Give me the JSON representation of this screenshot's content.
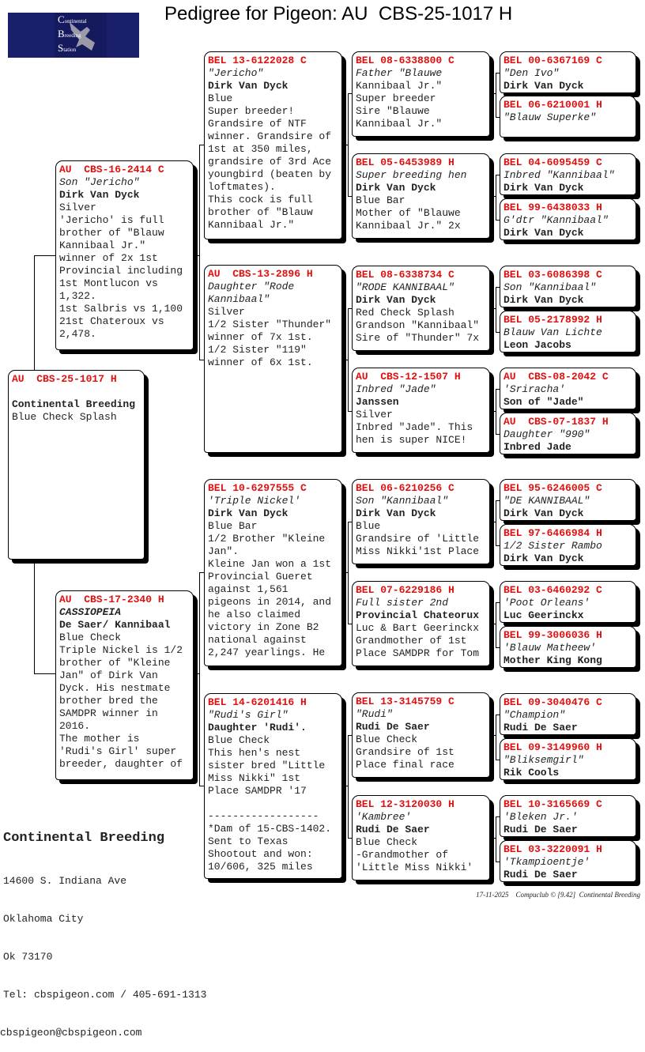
{
  "title": "Pedigree for Pigeon: AU  CBS-25-1017 H",
  "logo": {
    "lines": [
      "Continental",
      "Breeding",
      "Station"
    ],
    "color": "#1a1f6b"
  },
  "colors": {
    "ring": "#e01010",
    "text": "#222222",
    "shadow": "#000000"
  },
  "root": {
    "ring": "AU  CBS-25-1017 H",
    "lines": [
      {
        "t": "",
        "s": ""
      },
      {
        "t": "Continental Breeding",
        "s": "b"
      },
      {
        "t": "Blue Check Splash",
        "s": ""
      }
    ]
  },
  "gen2": [
    {
      "ring": "AU  CBS-16-2414 C",
      "lines": [
        {
          "t": "Son \"Jericho\"",
          "s": "i"
        },
        {
          "t": "Dirk Van Dyck",
          "s": "b"
        },
        {
          "t": "Silver",
          "s": ""
        },
        {
          "t": "'Jericho' is full",
          "s": ""
        },
        {
          "t": "brother of \"Blauw",
          "s": ""
        },
        {
          "t": "Kannibaal Jr.\"",
          "s": ""
        },
        {
          "t": "winner of 2x 1st",
          "s": ""
        },
        {
          "t": "Provincial including",
          "s": ""
        },
        {
          "t": "1st Montlucon vs",
          "s": ""
        },
        {
          "t": "1,322.",
          "s": ""
        },
        {
          "t": "1st Salbris vs 1,100",
          "s": ""
        },
        {
          "t": "21st Chateroux vs",
          "s": ""
        },
        {
          "t": "2,478.",
          "s": ""
        }
      ]
    },
    {
      "ring": "AU  CBS-17-2340 H",
      "lines": [
        {
          "t": "CASSIOPEIA",
          "s": "bi"
        },
        {
          "t": "De Saer/ Kannibaal",
          "s": "b"
        },
        {
          "t": "Blue Check",
          "s": ""
        },
        {
          "t": "Triple Nickel is 1/2",
          "s": ""
        },
        {
          "t": "brother of \"Kleine",
          "s": ""
        },
        {
          "t": "Jan\" of Dirk Van",
          "s": ""
        },
        {
          "t": "Dyck. His nestmate",
          "s": ""
        },
        {
          "t": "brother bred the",
          "s": ""
        },
        {
          "t": "SAMDPR winner in",
          "s": ""
        },
        {
          "t": "2016.",
          "s": ""
        },
        {
          "t": "The mother is",
          "s": ""
        },
        {
          "t": "'Rudi's Girl' super",
          "s": ""
        },
        {
          "t": "breeder, daughter of",
          "s": ""
        }
      ]
    }
  ],
  "gen3": [
    {
      "ring": "BEL 13-6122028 C",
      "lines": [
        {
          "t": "\"Jericho\"",
          "s": "i"
        },
        {
          "t": "Dirk Van Dyck",
          "s": "b"
        },
        {
          "t": "Blue",
          "s": ""
        },
        {
          "t": "Super breeder!",
          "s": ""
        },
        {
          "t": "Grandsire of NTF",
          "s": ""
        },
        {
          "t": "winner. Grandsire of",
          "s": ""
        },
        {
          "t": "1st at 350 miles,",
          "s": ""
        },
        {
          "t": "grandsire of 3rd Ace",
          "s": ""
        },
        {
          "t": "youngbird (beaten by",
          "s": ""
        },
        {
          "t": "loftmates).",
          "s": ""
        },
        {
          "t": "This cock is full",
          "s": ""
        },
        {
          "t": "brother of \"Blauw",
          "s": ""
        },
        {
          "t": "Kannibaal Jr.\"",
          "s": ""
        }
      ]
    },
    {
      "ring": "AU  CBS-13-2896 H",
      "lines": [
        {
          "t": "Daughter \"Rode",
          "s": "i"
        },
        {
          "t": "Kannibaal\"",
          "s": "i"
        },
        {
          "t": "Silver",
          "s": ""
        },
        {
          "t": "1/2 Sister \"Thunder\"",
          "s": ""
        },
        {
          "t": "winner of 7x 1st.",
          "s": ""
        },
        {
          "t": "1/2 Sister \"119\"",
          "s": ""
        },
        {
          "t": "winner of 6x 1st.",
          "s": ""
        }
      ]
    },
    {
      "ring": "BEL 10-6297555 C",
      "lines": [
        {
          "t": "'Triple Nickel'",
          "s": "i"
        },
        {
          "t": "Dirk Van Dyck",
          "s": "b"
        },
        {
          "t": "Blue Bar",
          "s": ""
        },
        {
          "t": "1/2 Brother \"Kleine",
          "s": ""
        },
        {
          "t": "Jan\".",
          "s": ""
        },
        {
          "t": "Kleine Jan won a 1st",
          "s": ""
        },
        {
          "t": "Provincial Gueret",
          "s": ""
        },
        {
          "t": "against 1,561",
          "s": ""
        },
        {
          "t": "pigeons in 2014, and",
          "s": ""
        },
        {
          "t": "he also claimed",
          "s": ""
        },
        {
          "t": "victory in Zone B2",
          "s": ""
        },
        {
          "t": "national against",
          "s": ""
        },
        {
          "t": "2,247 yearlings. He",
          "s": ""
        }
      ]
    },
    {
      "ring": "BEL 14-6201416 H",
      "lines": [
        {
          "t": "\"Rudi's Girl\"",
          "s": "i"
        },
        {
          "t": "Daughter 'Rudi'.",
          "s": "b"
        },
        {
          "t": "Blue Check",
          "s": ""
        },
        {
          "t": "This hen's nest",
          "s": ""
        },
        {
          "t": "sister bred \"Little",
          "s": ""
        },
        {
          "t": "Miss Nikki\" 1st",
          "s": ""
        },
        {
          "t": "Place SAMDPR '17",
          "s": ""
        },
        {
          "t": "",
          "s": ""
        },
        {
          "t": "------------------",
          "s": ""
        },
        {
          "t": "*Dam of 15-CBS-1402.",
          "s": ""
        },
        {
          "t": "Sent to Texas",
          "s": ""
        },
        {
          "t": "Shootout and won:",
          "s": ""
        },
        {
          "t": "10/606, 325 miles",
          "s": ""
        }
      ]
    }
  ],
  "gen4": [
    {
      "ring": "BEL 08-6338800 C",
      "lines": [
        {
          "t": "Father \"Blauwe",
          "s": "i"
        },
        {
          "t": "Kannibaal Jr.\"",
          "s": ""
        },
        {
          "t": "Super breeder",
          "s": ""
        },
        {
          "t": "Sire \"Blauwe",
          "s": ""
        },
        {
          "t": "Kannibaal Jr.\"",
          "s": ""
        }
      ]
    },
    {
      "ring": "BEL 05-6453989 H",
      "lines": [
        {
          "t": "Super breeding hen",
          "s": "i"
        },
        {
          "t": "Dirk Van Dyck",
          "s": "b"
        },
        {
          "t": "Blue Bar",
          "s": ""
        },
        {
          "t": "Mother of \"Blauwe",
          "s": ""
        },
        {
          "t": "Kannibaal Jr.\" 2x",
          "s": ""
        }
      ]
    },
    {
      "ring": "BEL 08-6338734 C",
      "lines": [
        {
          "t": "\"RODE KANNIBAAL\"",
          "s": "i"
        },
        {
          "t": "Dirk Van Dyck",
          "s": "b"
        },
        {
          "t": "Red Check Splash",
          "s": ""
        },
        {
          "t": "Grandson \"Kannibaal\"",
          "s": ""
        },
        {
          "t": "Sire of \"Thunder\" 7x",
          "s": ""
        }
      ]
    },
    {
      "ring": "AU  CBS-12-1507 H",
      "lines": [
        {
          "t": "Inbred \"Jade\"",
          "s": "i"
        },
        {
          "t": "Janssen",
          "s": "b"
        },
        {
          "t": "Silver",
          "s": ""
        },
        {
          "t": "Inbred \"Jade\". This",
          "s": ""
        },
        {
          "t": "hen is super NICE!",
          "s": ""
        }
      ]
    },
    {
      "ring": "BEL 06-6210256 C",
      "lines": [
        {
          "t": "Son \"Kannibaal\"",
          "s": "i"
        },
        {
          "t": "Dirk Van Dyck",
          "s": "b"
        },
        {
          "t": "Blue",
          "s": ""
        },
        {
          "t": "Grandsire of 'Little",
          "s": ""
        },
        {
          "t": "Miss Nikki'1st Place",
          "s": ""
        }
      ]
    },
    {
      "ring": "BEL 07-6229186 H",
      "lines": [
        {
          "t": "Full sister 2nd",
          "s": "i"
        },
        {
          "t": "Provincial Chateorux",
          "s": "b"
        },
        {
          "t": "Luc & Bart Geerinckx",
          "s": ""
        },
        {
          "t": "Grandmother of 1st",
          "s": ""
        },
        {
          "t": "Place SAMDPR for Tom",
          "s": ""
        }
      ]
    },
    {
      "ring": "BEL 13-3145759 C",
      "lines": [
        {
          "t": "\"Rudi\"",
          "s": "i"
        },
        {
          "t": "Rudi De Saer",
          "s": "b"
        },
        {
          "t": "Blue Check",
          "s": ""
        },
        {
          "t": "Grandsire of 1st",
          "s": ""
        },
        {
          "t": "Place final race",
          "s": ""
        }
      ]
    },
    {
      "ring": "BEL 12-3120030 H",
      "lines": [
        {
          "t": "'Kambree'",
          "s": "i"
        },
        {
          "t": "Rudi De Saer",
          "s": "b"
        },
        {
          "t": "Blue Check",
          "s": ""
        },
        {
          "t": "-Grandmother of",
          "s": ""
        },
        {
          "t": "'Little Miss Nikki'",
          "s": ""
        }
      ]
    }
  ],
  "gen5": [
    {
      "ring": "BEL 00-6367169 C",
      "lines": [
        {
          "t": "\"Den Ivo\"",
          "s": "i"
        },
        {
          "t": "Dirk Van Dyck",
          "s": "b"
        }
      ]
    },
    {
      "ring": "BEL 06-6210001 H",
      "lines": [
        {
          "t": "\"Blauw Superke\"",
          "s": "i"
        }
      ]
    },
    {
      "ring": "BEL 04-6095459 C",
      "lines": [
        {
          "t": "Inbred \"Kannibaal\"",
          "s": "i"
        },
        {
          "t": "Dirk Van Dyck",
          "s": "b"
        }
      ]
    },
    {
      "ring": "BEL 99-6438033 H",
      "lines": [
        {
          "t": "G'dtr \"Kannibaal\"",
          "s": "i"
        },
        {
          "t": "Dirk Van Dyck",
          "s": "b"
        }
      ]
    },
    {
      "ring": "BEL 03-6086398 C",
      "lines": [
        {
          "t": "Son \"Kannibaal\"",
          "s": "i"
        },
        {
          "t": "Dirk Van Dyck",
          "s": "b"
        }
      ]
    },
    {
      "ring": "BEL 05-2178992 H",
      "lines": [
        {
          "t": "Blauw Van Lichte",
          "s": "i"
        },
        {
          "t": "Leon Jacobs",
          "s": "b"
        }
      ]
    },
    {
      "ring": "AU  CBS-08-2042 C",
      "lines": [
        {
          "t": "'Sriracha'",
          "s": "i"
        },
        {
          "t": "Son of \"Jade\"",
          "s": "b"
        }
      ]
    },
    {
      "ring": "AU  CBS-07-1837 H",
      "lines": [
        {
          "t": "Daughter \"990\"",
          "s": "i"
        },
        {
          "t": "Inbred Jade",
          "s": "b"
        }
      ]
    },
    {
      "ring": "BEL 95-6246005 C",
      "lines": [
        {
          "t": "\"DE KANNIBAAL\"",
          "s": "i"
        },
        {
          "t": "Dirk Van Dyck",
          "s": "b"
        }
      ]
    },
    {
      "ring": "BEL 97-6466984 H",
      "lines": [
        {
          "t": "1/2 Sister Rambo",
          "s": "i"
        },
        {
          "t": "Dirk Van Dyck",
          "s": "b"
        }
      ]
    },
    {
      "ring": "BEL 03-6460292 C",
      "lines": [
        {
          "t": "'Poot Orleans'",
          "s": "i"
        },
        {
          "t": "Luc Geerinckx",
          "s": "b"
        }
      ]
    },
    {
      "ring": "BEL 99-3006036 H",
      "lines": [
        {
          "t": "'Blauw Matheew'",
          "s": "i"
        },
        {
          "t": "Mother King Kong",
          "s": "b"
        }
      ]
    },
    {
      "ring": "BEL 09-3040476 C",
      "lines": [
        {
          "t": "\"Champion\"",
          "s": "i"
        },
        {
          "t": "Rudi De Saer",
          "s": "b"
        }
      ]
    },
    {
      "ring": "BEL 09-3149960 H",
      "lines": [
        {
          "t": "\"Bliksemgirl\"",
          "s": "i"
        },
        {
          "t": "Rik Cools",
          "s": "b"
        }
      ]
    },
    {
      "ring": "BEL 10-3165669 C",
      "lines": [
        {
          "t": "'Bleken Jr.'",
          "s": "i"
        },
        {
          "t": "Rudi De Saer",
          "s": "b"
        }
      ]
    },
    {
      "ring": "BEL 03-3220091 H",
      "lines": [
        {
          "t": "'Tkampioentje'",
          "s": "i"
        },
        {
          "t": "Rudi De Saer",
          "s": "b"
        }
      ]
    }
  ],
  "footer": {
    "name": "Continental Breeding",
    "address": "14600 S. Indiana Ave",
    "city": "Oklahoma City",
    "state_zip": "Ok 73170",
    "tel": "Tel: cbspigeon.com / 405-691-1313",
    "email": "cbspigeon@cbspigeon.com"
  },
  "stamp": "17-11-2025    Compuclub © [9.42]  Continental Breeding"
}
